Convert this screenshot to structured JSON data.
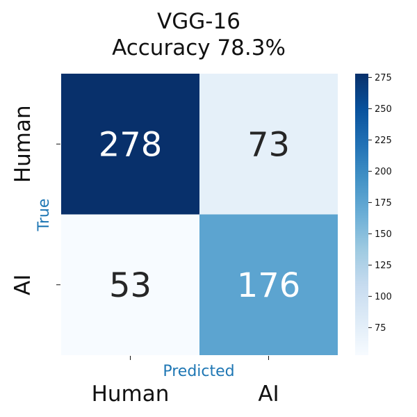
{
  "chart_data": {
    "type": "heatmap",
    "title_lines": [
      "VGG-16",
      "Accuracy 78.3%"
    ],
    "xlabel": "Predicted",
    "ylabel": "True",
    "x_categories": [
      "Human",
      "AI"
    ],
    "y_categories": [
      "Human",
      "AI"
    ],
    "values": [
      [
        278,
        73
      ],
      [
        53,
        176
      ]
    ],
    "colormap": "Blues",
    "colorbar": {
      "min": 53,
      "max": 278,
      "ticks": [
        75,
        100,
        125,
        150,
        175,
        200,
        225,
        250,
        275
      ]
    },
    "colors": {
      "axis_title": "#1f77b4",
      "dark_text": "#262626",
      "light_text": "#ffffff"
    },
    "grid": false
  }
}
